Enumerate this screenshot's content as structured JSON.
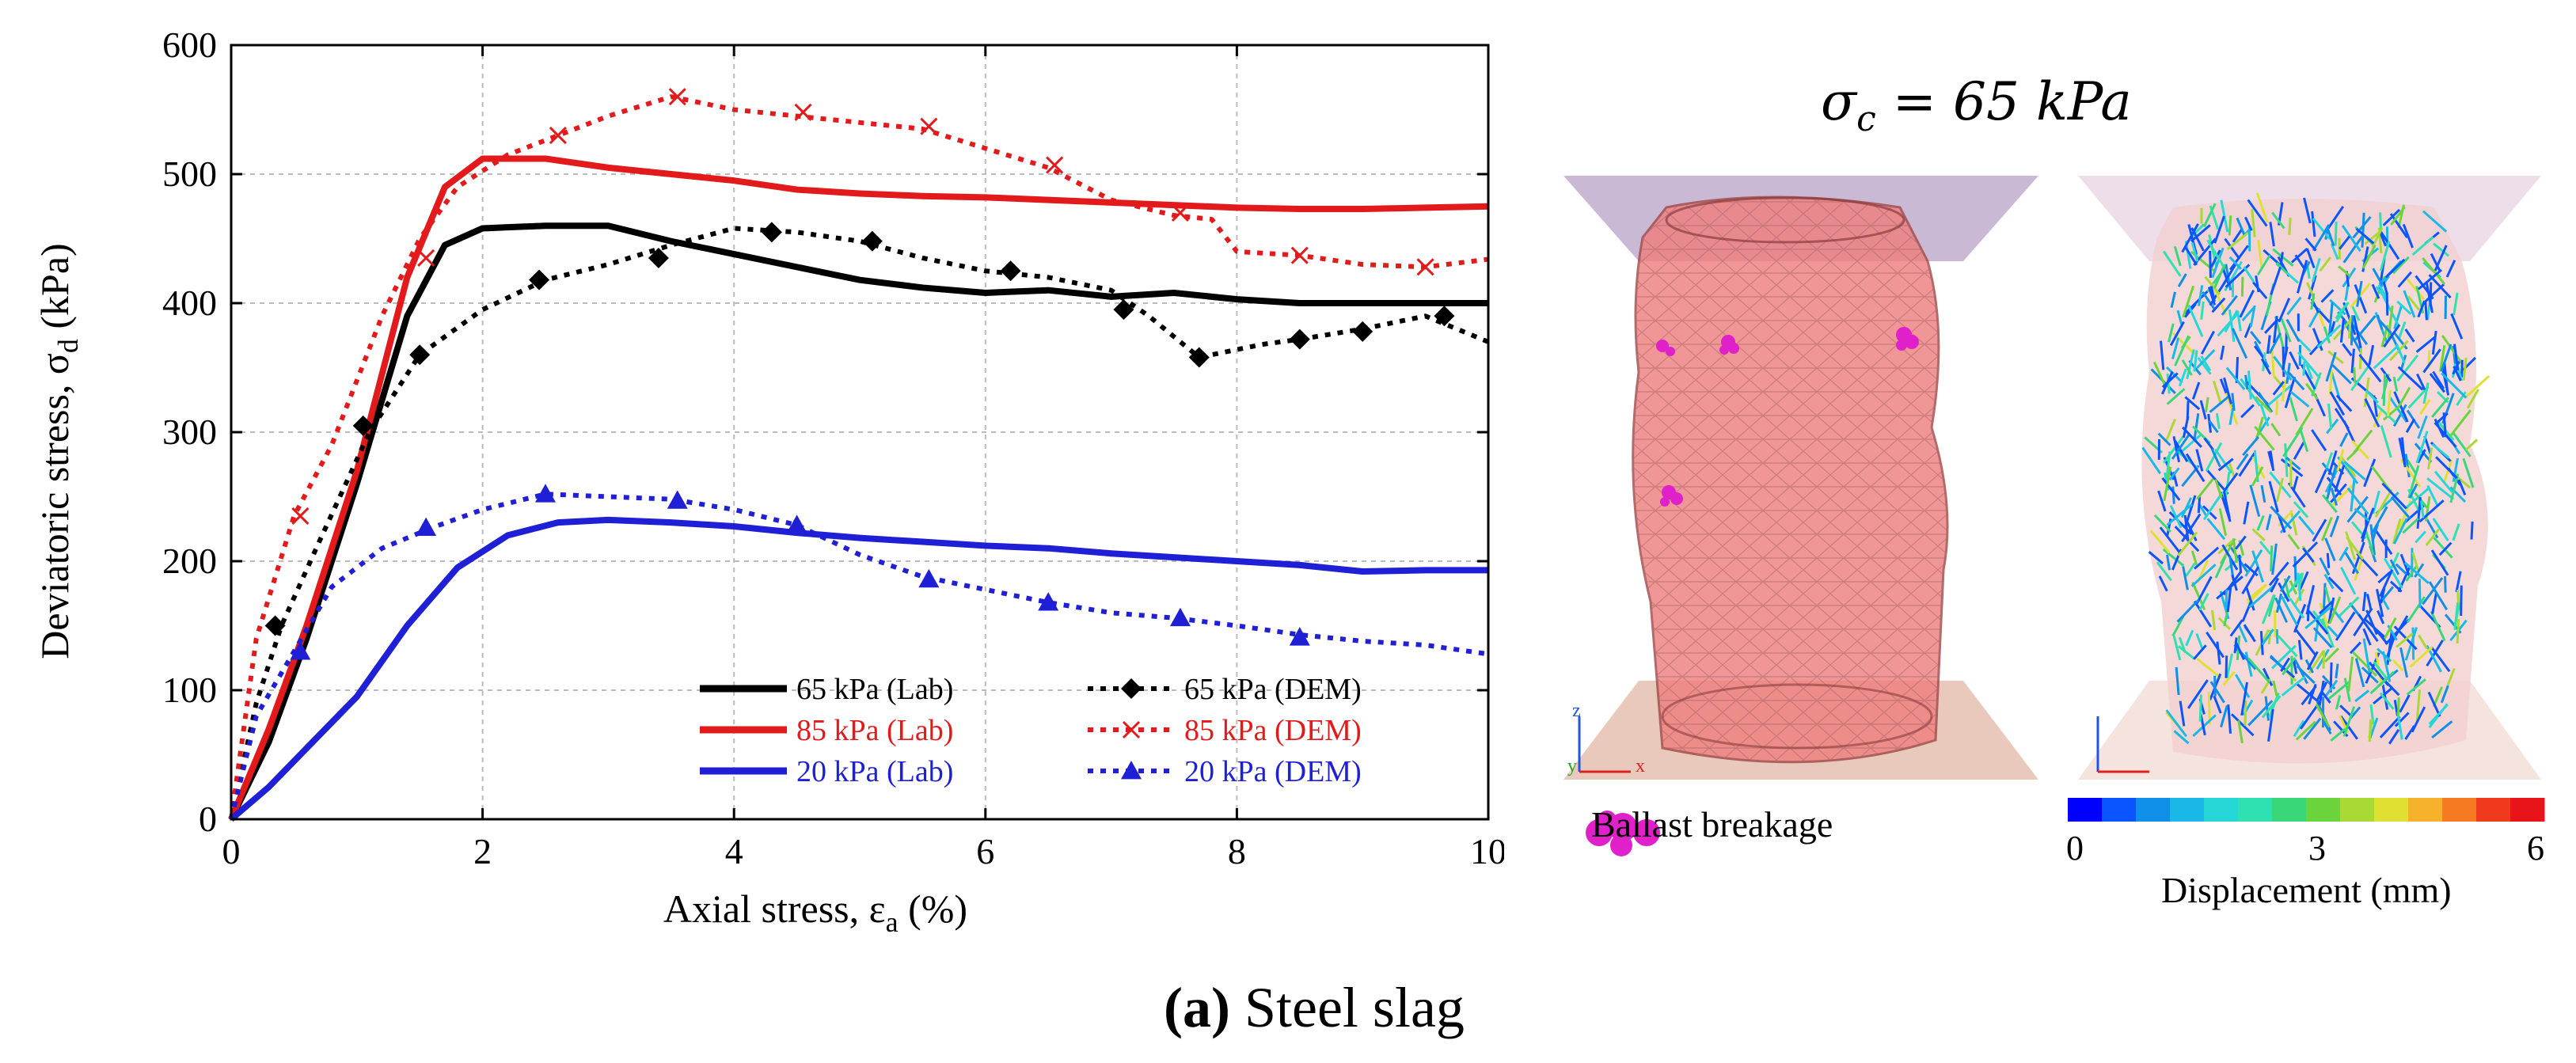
{
  "chart_data": {
    "type": "line",
    "xlabel": "Axial stress, ε",
    "xlabel_sub": "a",
    "xlabel_unit": " (%)",
    "ylabel": "Deviatoric stress, σ",
    "ylabel_sub": "d",
    "ylabel_unit": " (kPa)",
    "xlim": [
      0,
      10
    ],
    "ylim": [
      0,
      600
    ],
    "xticks": [
      0,
      2,
      4,
      6,
      8,
      10
    ],
    "yticks": [
      0,
      100,
      200,
      300,
      400,
      500,
      600
    ],
    "grid": true,
    "legend_position": "bottom-right",
    "series": [
      {
        "name": "65 kPa (Lab)",
        "color": "#000000",
        "style": "solid",
        "marker": "none",
        "x": [
          0,
          0.3,
          0.6,
          1.0,
          1.4,
          1.7,
          2.0,
          2.5,
          3.0,
          3.5,
          4.0,
          4.5,
          5.0,
          5.5,
          6.0,
          6.5,
          7.0,
          7.5,
          8.0,
          8.5,
          9.0,
          9.5,
          10.0
        ],
        "y": [
          0,
          60,
          140,
          260,
          390,
          445,
          458,
          460,
          460,
          448,
          438,
          428,
          418,
          412,
          408,
          410,
          405,
          408,
          403,
          400,
          400,
          400,
          400
        ]
      },
      {
        "name": "85 kPa (Lab)",
        "color": "#e31a1c",
        "style": "solid",
        "marker": "none",
        "x": [
          0,
          0.3,
          0.6,
          1.0,
          1.4,
          1.7,
          2.0,
          2.5,
          3.0,
          3.5,
          4.0,
          4.5,
          5.0,
          5.5,
          6.0,
          6.5,
          7.0,
          7.5,
          8.0,
          8.5,
          9.0,
          9.5,
          10.0
        ],
        "y": [
          0,
          70,
          150,
          270,
          420,
          490,
          512,
          512,
          505,
          500,
          495,
          488,
          485,
          483,
          482,
          480,
          478,
          476,
          474,
          473,
          473,
          474,
          475
        ]
      },
      {
        "name": "20 kPa (Lab)",
        "color": "#1f1fd6",
        "style": "solid",
        "marker": "none",
        "x": [
          0,
          0.3,
          0.6,
          1.0,
          1.4,
          1.8,
          2.2,
          2.6,
          3.0,
          3.5,
          4.0,
          4.5,
          5.0,
          5.5,
          6.0,
          6.5,
          7.0,
          7.5,
          8.0,
          8.5,
          9.0,
          9.5,
          10.0
        ],
        "y": [
          0,
          25,
          55,
          95,
          150,
          195,
          220,
          230,
          232,
          230,
          227,
          222,
          218,
          215,
          212,
          210,
          206,
          203,
          200,
          197,
          192,
          193,
          193
        ]
      },
      {
        "name": "65 kPa (DEM)",
        "color": "#000000",
        "style": "dotted",
        "marker": "diamond",
        "x": [
          0,
          0.2,
          0.4,
          0.7,
          1.1,
          1.5,
          2.0,
          2.5,
          3.0,
          3.5,
          4.0,
          4.5,
          5.0,
          5.5,
          6.0,
          6.5,
          7.0,
          7.3,
          7.7,
          8.2,
          8.5,
          9.0,
          9.5,
          10.0
        ],
        "y": [
          0,
          90,
          150,
          215,
          300,
          360,
          395,
          418,
          430,
          445,
          458,
          455,
          448,
          435,
          425,
          420,
          410,
          390,
          358,
          368,
          372,
          380,
          390,
          370
        ],
        "marker_x": [
          0.35,
          1.05,
          1.5,
          2.45,
          3.4,
          4.3,
          5.1,
          6.2,
          7.1,
          7.7,
          8.5,
          9.0,
          9.65
        ],
        "marker_y": [
          150,
          305,
          360,
          418,
          435,
          455,
          448,
          425,
          395,
          358,
          372,
          378,
          390
        ]
      },
      {
        "name": "85 kPa (DEM)",
        "color": "#e31a1c",
        "style": "dotted",
        "marker": "x",
        "x": [
          0,
          0.2,
          0.5,
          0.8,
          1.2,
          1.5,
          1.8,
          2.2,
          2.6,
          3.0,
          3.5,
          4.0,
          4.5,
          5.0,
          5.5,
          6.0,
          6.5,
          7.0,
          7.5,
          7.8,
          8.0,
          8.5,
          9.0,
          9.5,
          10.0
        ],
        "y": [
          0,
          140,
          235,
          290,
          390,
          450,
          490,
          515,
          530,
          545,
          560,
          550,
          545,
          540,
          535,
          520,
          505,
          480,
          468,
          465,
          440,
          437,
          430,
          428,
          434
        ],
        "marker_x": [
          0.55,
          1.55,
          2.6,
          3.55,
          4.55,
          5.55,
          6.55,
          7.55,
          8.5,
          9.5
        ],
        "marker_y": [
          235,
          435,
          530,
          560,
          548,
          537,
          507,
          470,
          437,
          428
        ]
      },
      {
        "name": "20 kPa (DEM)",
        "color": "#1f1fd6",
        "style": "dotted",
        "marker": "triangle",
        "x": [
          0,
          0.2,
          0.5,
          0.8,
          1.2,
          1.6,
          2.0,
          2.5,
          3.0,
          3.5,
          4.0,
          4.5,
          5.0,
          5.5,
          6.0,
          6.5,
          7.0,
          7.5,
          8.0,
          8.5,
          9.0,
          9.5,
          10.0
        ],
        "y": [
          0,
          80,
          130,
          180,
          210,
          226,
          240,
          252,
          250,
          248,
          240,
          228,
          205,
          188,
          178,
          168,
          160,
          156,
          150,
          143,
          138,
          135,
          128
        ],
        "marker_x": [
          0.55,
          1.55,
          2.5,
          3.55,
          4.5,
          5.55,
          6.5,
          7.55,
          8.5
        ],
        "marker_y": [
          130,
          226,
          252,
          247,
          228,
          186,
          168,
          156,
          141
        ]
      }
    ]
  },
  "panel": {
    "sigma_symbol": "σ",
    "sigma_sub": "c",
    "sigma_rest": " = 65 kPa",
    "breakage_label": "Ballast breakage",
    "colorbar_title": "Displacement (mm)",
    "colorbar_ticks": [
      "0",
      "3",
      "6"
    ],
    "colorbar_colors": [
      "#0000ff",
      "#0a55ff",
      "#0f8fe8",
      "#19b8e6",
      "#27d6d6",
      "#2fe0b0",
      "#3ad77a",
      "#6bd43d",
      "#a8d934",
      "#e0e033",
      "#f5b22a",
      "#f57a22",
      "#ef3b1c",
      "#e8141a"
    ],
    "axis_z": "z",
    "axis_y": "y",
    "axis_x": "x",
    "caption_bold": "(a)",
    "caption_text": " Steel slag"
  }
}
